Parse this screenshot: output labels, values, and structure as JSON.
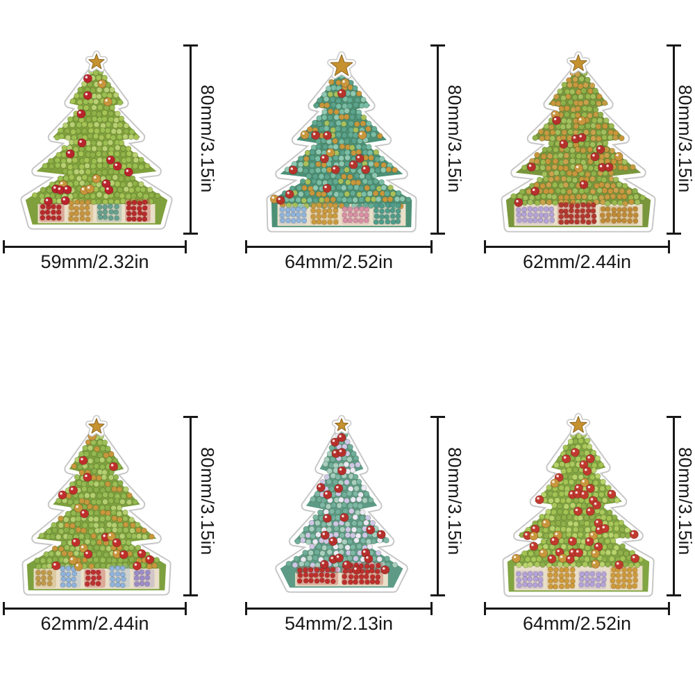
{
  "page": {
    "background": "#ffffff",
    "dimension_line_color": "#171717",
    "label_text_color": "#171717"
  },
  "items": [
    {
      "name": "christmas-tree-sticker-1",
      "width_label": "59mm/2.32in",
      "height_label": "80mm/3.15in",
      "art": {
        "sticker_edge": "#c6c6c6",
        "base": "#7fa03c",
        "foliage": [
          "#a6c355",
          "#8fb148",
          "#b9d073",
          "#9cbf52"
        ],
        "ornaments": [
          "#b8242c",
          "#c8953c"
        ],
        "ornament_chance": 0.1,
        "garland": null,
        "star": "#c6922f",
        "gifts": [
          {
            "c": "#b82a2a"
          },
          {
            "c": "#c8953c"
          },
          {
            "c": "#66a08e"
          },
          {
            "c": "#b82a2a"
          }
        ]
      }
    },
    {
      "name": "christmas-tree-sticker-2",
      "width_label": "64mm/2.52in",
      "height_label": "80mm/3.15in",
      "art": {
        "sticker_edge": "#c6c6c6",
        "base": "#4c9076",
        "foliage": [
          "#5aa28c",
          "#79bda6",
          "#8fc8b3",
          "#63ab94",
          "#a9c05b"
        ],
        "ornaments": [
          "#b5342c",
          "#c8963c"
        ],
        "ornament_chance": 0.07,
        "garland": "#c8963c",
        "star": "#c6922f",
        "gifts": [
          {
            "c": "#8fb4dd"
          },
          {
            "c": "#cb9a3e"
          },
          {
            "c": "#d88fa4"
          },
          {
            "c": "#4f9c8a"
          }
        ]
      }
    },
    {
      "name": "christmas-tree-sticker-3",
      "width_label": "62mm/2.44in",
      "height_label": "80mm/3.15in",
      "art": {
        "sticker_edge": "#c6c6c6",
        "base": "#79963c",
        "foliage": [
          "#8fb14c",
          "#a3c05e",
          "#c59a42",
          "#9ab94f",
          "#caa24c"
        ],
        "ornaments": [
          "#b5302c",
          "#c8963c"
        ],
        "ornament_chance": 0.08,
        "garland": "#c8963c",
        "star": "#c6922f",
        "gifts": [
          {
            "c": "#b3a3d6"
          },
          {
            "c": "#b3372e"
          },
          {
            "c": "#c08a35"
          }
        ]
      }
    },
    {
      "name": "christmas-tree-sticker-4",
      "width_label": "62mm/2.44in",
      "height_label": "80mm/3.15in",
      "art": {
        "sticker_edge": "#c6c6c6",
        "base": "#7da03e",
        "foliage": [
          "#9dbf58",
          "#8bb04b",
          "#b4cf70",
          "#93b850"
        ],
        "ornaments": [
          "#bf2f2b",
          "#c8973d"
        ],
        "ornament_chance": 0.09,
        "garland": "#c8973d",
        "star": "#c6922f",
        "gifts": [
          {
            "c": "#c09a49"
          },
          {
            "c": "#8fb3dc"
          },
          {
            "c": "#be3030"
          },
          {
            "c": "#8fb3dc"
          },
          {
            "c": "#9b8cc8"
          }
        ]
      }
    },
    {
      "name": "christmas-tree-sticker-5",
      "width_label": "54mm/2.13in",
      "height_label": "80mm/3.15in",
      "art": {
        "sticker_edge": "#c6c6c6",
        "base": "#5d9b87",
        "foliage": [
          "#6fae9a",
          "#a8cfc0",
          "#cfc7e6",
          "#7db7a5",
          "#eceaf4"
        ],
        "ornaments": [
          "#b5302c"
        ],
        "ornament_chance": 0.1,
        "garland": null,
        "star": "#c6922f",
        "top_ornament": true,
        "gifts": [
          {
            "c": "#be2f2c"
          },
          {
            "c": "#be2f2c"
          }
        ]
      }
    },
    {
      "name": "christmas-tree-sticker-6",
      "width_label": "64mm/2.52in",
      "height_label": "80mm/3.15in",
      "art": {
        "sticker_edge": "#c6c6c6",
        "base": "#82a543",
        "foliage": [
          "#a3c353",
          "#b9d36d",
          "#8fb04a",
          "#aac85c"
        ],
        "ornaments": [
          "#c03a2e",
          "#c8963c"
        ],
        "ornament_chance": 0.11,
        "garland": null,
        "star": "#c6922f",
        "gifts": [
          {
            "c": "#b3a3d8"
          },
          {
            "c": "#cf9a3a"
          },
          {
            "c": "#b3a3d8"
          },
          {
            "c": "#cf9a3a"
          }
        ]
      }
    }
  ]
}
